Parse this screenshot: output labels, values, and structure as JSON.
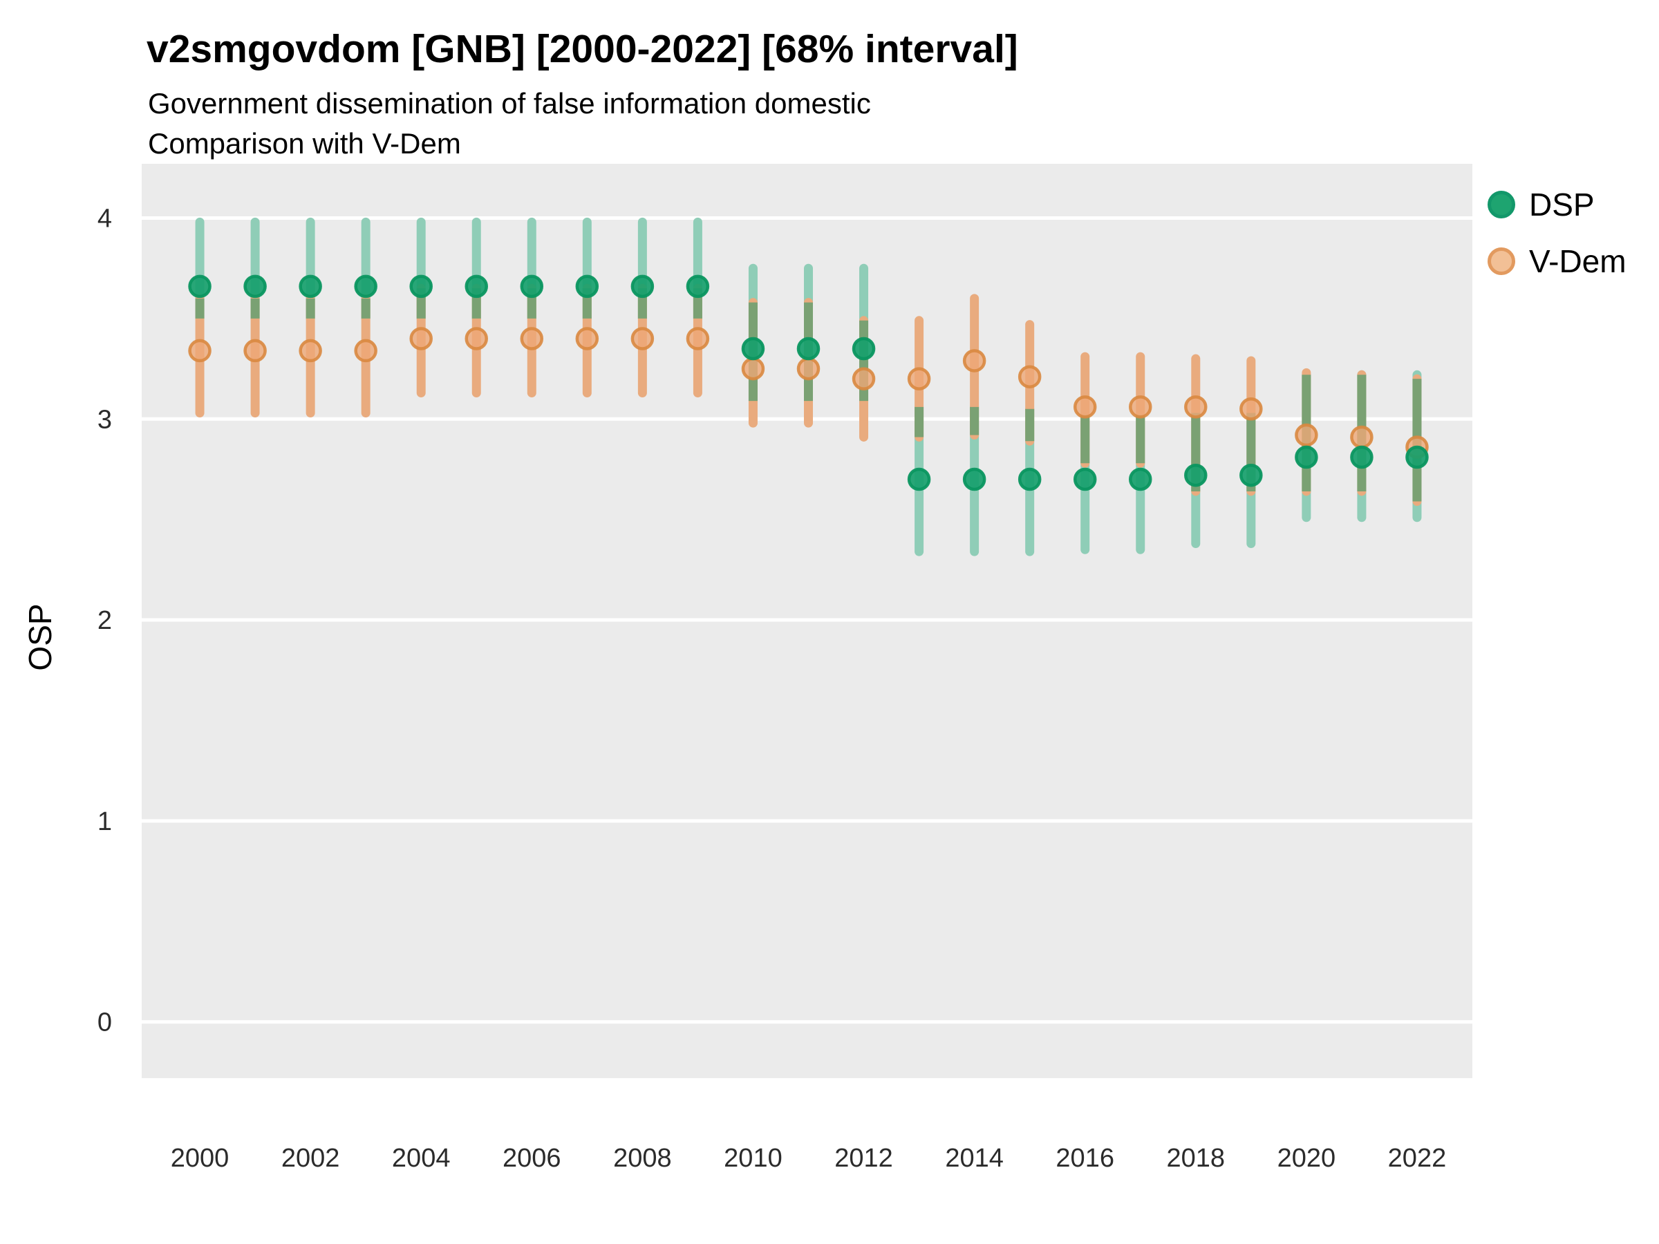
{
  "header": {
    "title": "v2smgovdom [GNB] [2000-2022] [68% interval]",
    "subtitle1": "Government dissemination of false information domestic",
    "subtitle2": "Comparison with V-Dem"
  },
  "y_axis": {
    "label": "OSP",
    "ticks": [
      4,
      3,
      2,
      1,
      0
    ]
  },
  "x_axis": {
    "ticks": [
      2000,
      2002,
      2004,
      2006,
      2008,
      2010,
      2012,
      2014,
      2016,
      2018,
      2020,
      2022
    ]
  },
  "legend": {
    "items": [
      {
        "label": "DSP",
        "fill": "#1EA470",
        "stroke": "#13986A"
      },
      {
        "label": "V-Dem",
        "fill": "#F2C096",
        "stroke": "#E29A5F"
      }
    ]
  },
  "colors": {
    "panel_bg": "#EBEBEB",
    "gridline": "#FFFFFF",
    "dsp_bar": "#8FCDB7",
    "vdem_bar": "#E9AB7E",
    "overlap_bar": "#7AA173",
    "dsp_point_fill": "#17A06C",
    "dsp_point_stroke": "#0B9660",
    "vdem_point_fill": "#EDA877",
    "vdem_point_stroke": "#D98840",
    "tick_text": "#2B2B2B"
  },
  "chart_data": {
    "type": "scatter",
    "title": "v2smgovdom [GNB] [2000-2022] [68% interval]",
    "subtitle": "Government dissemination of false information domestic — Comparison with V-Dem",
    "xlabel": "",
    "ylabel": "OSP",
    "xlim": [
      1998.95,
      2023.0
    ],
    "ylim": [
      -0.28,
      4.27
    ],
    "grid": "major-horizontal",
    "legend_position": "right",
    "interval_note": "68% credible interval shown as vertical bars; olive segments are where DSP and V-Dem intervals overlap",
    "x": [
      2000,
      2001,
      2002,
      2003,
      2004,
      2005,
      2006,
      2007,
      2008,
      2009,
      2010,
      2011,
      2012,
      2013,
      2014,
      2015,
      2016,
      2017,
      2018,
      2019,
      2020,
      2021,
      2022
    ],
    "series": [
      {
        "name": "DSP",
        "values": [
          3.66,
          3.66,
          3.66,
          3.66,
          3.66,
          3.66,
          3.66,
          3.66,
          3.66,
          3.66,
          3.35,
          3.35,
          3.35,
          2.7,
          2.7,
          2.7,
          2.7,
          2.7,
          2.72,
          2.72,
          2.81,
          2.81,
          2.81
        ],
        "lower": [
          3.5,
          3.5,
          3.5,
          3.5,
          3.5,
          3.5,
          3.5,
          3.5,
          3.5,
          3.5,
          3.09,
          3.09,
          3.09,
          2.34,
          2.34,
          2.34,
          2.35,
          2.35,
          2.38,
          2.38,
          2.51,
          2.51,
          2.51
        ],
        "upper": [
          3.98,
          3.98,
          3.98,
          3.98,
          3.98,
          3.98,
          3.98,
          3.98,
          3.98,
          3.98,
          3.75,
          3.75,
          3.75,
          3.06,
          3.06,
          3.05,
          3.02,
          3.02,
          3.03,
          3.03,
          3.22,
          3.22,
          3.22
        ]
      },
      {
        "name": "V-Dem",
        "values": [
          3.34,
          3.34,
          3.34,
          3.34,
          3.4,
          3.4,
          3.4,
          3.4,
          3.4,
          3.4,
          3.25,
          3.25,
          3.2,
          3.2,
          3.29,
          3.21,
          3.06,
          3.06,
          3.06,
          3.05,
          2.92,
          2.91,
          2.86
        ],
        "lower": [
          3.03,
          3.03,
          3.03,
          3.03,
          3.13,
          3.13,
          3.13,
          3.13,
          3.13,
          3.13,
          2.98,
          2.98,
          2.91,
          2.91,
          2.92,
          2.89,
          2.78,
          2.78,
          2.64,
          2.64,
          2.64,
          2.64,
          2.59
        ],
        "upper": [
          3.6,
          3.6,
          3.6,
          3.6,
          3.65,
          3.65,
          3.65,
          3.65,
          3.65,
          3.65,
          3.58,
          3.58,
          3.49,
          3.49,
          3.6,
          3.47,
          3.31,
          3.31,
          3.3,
          3.29,
          3.23,
          3.22,
          3.2
        ]
      }
    ]
  }
}
